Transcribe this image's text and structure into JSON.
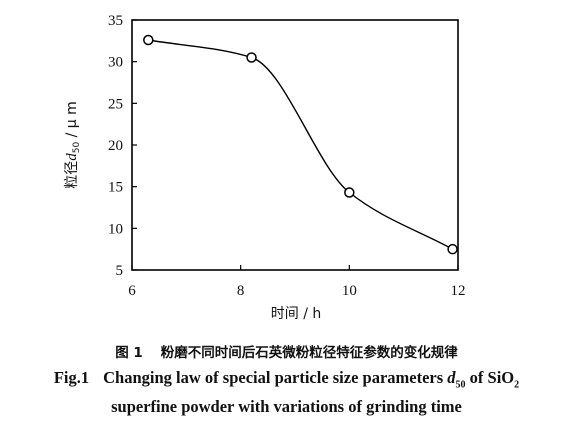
{
  "chart_data": {
    "type": "line",
    "x": [
      6.3,
      8.2,
      10.0,
      11.9
    ],
    "series": [
      {
        "values": [
          32.6,
          30.5,
          14.3,
          7.5
        ],
        "marker": "open-circle",
        "color": "#000000"
      }
    ],
    "xlim": [
      6,
      12
    ],
    "ylim": [
      5,
      35
    ],
    "xticks": [
      6,
      8,
      10,
      12
    ],
    "yticks": [
      5,
      10,
      15,
      20,
      25,
      30,
      35
    ],
    "xlabel": "时间 / h",
    "ylabel": {
      "prefix": "粒径",
      "var": "d",
      "sub": "50",
      "suffix": " / μ m"
    },
    "grid": false,
    "legend": "none"
  },
  "caption": {
    "cn_fig": "图 1",
    "cn_text": "粉磨不同时间后石英微粉粒径特征参数的变化规律",
    "en_fig": "Fig.1",
    "en_text_1": "Changing law of special particle size parameters ",
    "en_var": "d",
    "en_sub": "50",
    "en_text_2": " of SiO",
    "en_chem_sub": "2",
    "en_line2": "superfine powder with variations of grinding time"
  }
}
